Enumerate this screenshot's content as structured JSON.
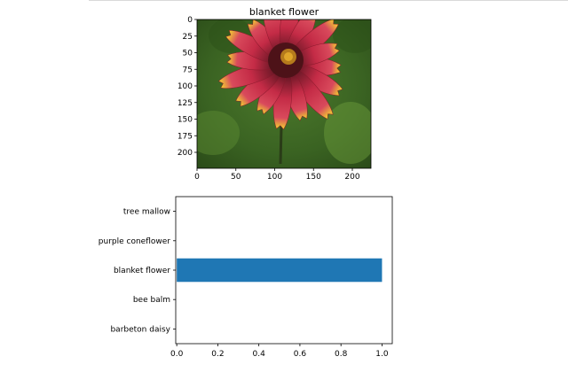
{
  "chart_data": [
    {
      "type": "image",
      "title": "blanket flower",
      "image": "blanket-flower-photo",
      "xlim": [
        0,
        224
      ],
      "ylim": [
        224,
        0
      ],
      "xticks": [
        0,
        50,
        100,
        150,
        200
      ],
      "yticks": [
        0,
        25,
        50,
        75,
        100,
        125,
        150,
        175,
        200
      ],
      "colors": {
        "background": "#3f6a24",
        "petal": "#c22a45",
        "petal_tip": "#f2d92e",
        "center": "#4d1218"
      }
    },
    {
      "type": "bar",
      "orientation": "horizontal",
      "categories": [
        "barbeton daisy",
        "bee balm",
        "blanket flower",
        "purple coneflower",
        "tree mallow"
      ],
      "values": [
        0.0,
        0.0,
        1.0,
        0.0,
        0.0
      ],
      "xlim": [
        -0.005,
        1.05
      ],
      "xticks": [
        0.0,
        0.2,
        0.4,
        0.6,
        0.8,
        1.0
      ],
      "colors": {
        "bar": "#1f77b4"
      }
    }
  ]
}
